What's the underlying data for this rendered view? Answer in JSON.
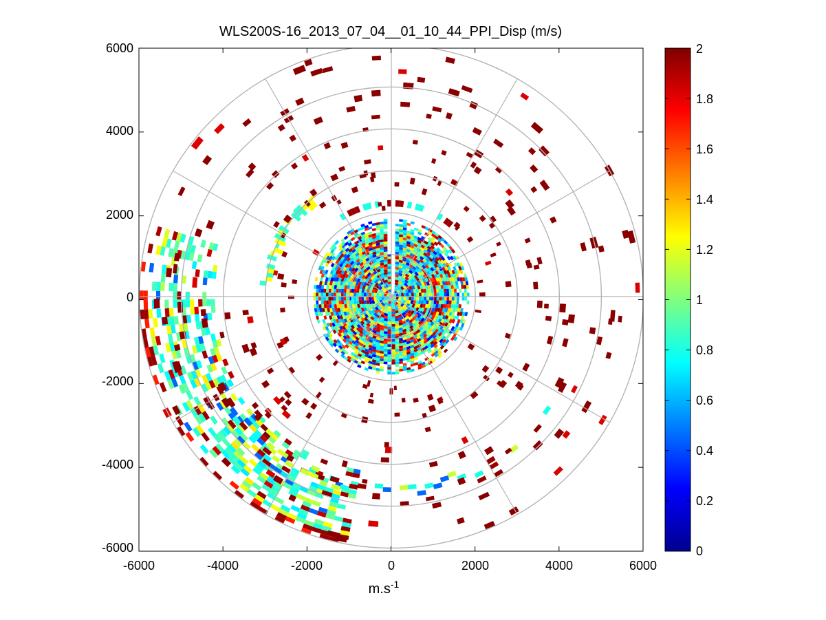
{
  "chart_data": {
    "type": "heatmap",
    "subtype": "polar-ppi",
    "title": "WLS200S-16_2013_07_04__01_10_44_PPI_Disp (m/s)",
    "xlabel": "m.s",
    "xlabel_superscript": "-1",
    "ylabel": "",
    "xlim": [
      -6000,
      6000
    ],
    "ylim": [
      -6000,
      6000
    ],
    "xticks": [
      "-6000",
      "-4000",
      "-2000",
      "0",
      "2000",
      "4000",
      "6000"
    ],
    "yticks": [
      "6000",
      "4000",
      "2000",
      "0",
      "-2000",
      "-4000",
      "-6000"
    ],
    "range_rings_m": [
      1000,
      2000,
      3000,
      4000,
      5000,
      6000
    ],
    "spoke_angles_deg": [
      0,
      30,
      60,
      90,
      120,
      150,
      180,
      210,
      240,
      270,
      300,
      330
    ],
    "colorbar": {
      "min": 0,
      "max": 2,
      "ticks": [
        "2",
        "1.8",
        "1.6",
        "1.4",
        "1.2",
        "1",
        "0.8",
        "0.6",
        "0.4",
        "0.2",
        "0"
      ],
      "colormap": "jet"
    },
    "regions": [
      {
        "name": "dense-core",
        "r_min": 0,
        "r_max": 1850,
        "az_start": 0,
        "az_end": 360,
        "dominant_range": [
          0.2,
          2.0
        ]
      },
      {
        "name": "west-southwest-arc",
        "r_min": 4200,
        "r_max": 6000,
        "az_start": 190,
        "az_end": 285,
        "dominant_range": [
          0.6,
          2.0
        ]
      },
      {
        "name": "south-arc",
        "r_min": 4400,
        "r_max": 5200,
        "az_start": 125,
        "az_end": 245,
        "dominant_range": [
          0.5,
          2.0
        ]
      },
      {
        "name": "west-inner-arc",
        "r_min": 2600,
        "r_max": 3300,
        "az_start": 275,
        "az_end": 320,
        "dominant_range": [
          0.8,
          1.4
        ]
      },
      {
        "name": "scattered-far-range",
        "r_min": 2000,
        "r_max": 6000,
        "az_start": 0,
        "az_end": 360,
        "dominant_range": [
          1.8,
          2.0
        ]
      }
    ]
  }
}
